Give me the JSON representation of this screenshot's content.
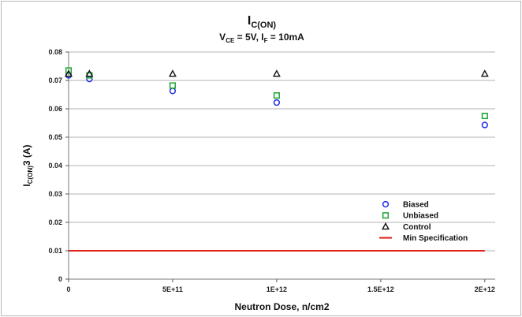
{
  "chart_data": {
    "type": "scatter",
    "title_main": "I",
    "title_main_sub": "C(ON)",
    "subtitle_parts": [
      {
        "t": "V",
        "sub": false
      },
      {
        "t": "CE",
        "sub": true
      },
      {
        "t": " = 5V, I",
        "sub": false
      },
      {
        "t": "F",
        "sub": true
      },
      {
        "t": " = 10mA",
        "sub": false
      }
    ],
    "xlabel": "Neutron Dose, n/cm2",
    "ylabel_parts": [
      {
        "t": "I",
        "sub": false
      },
      {
        "t": "C(ON)",
        "sub": true
      },
      {
        "t": "3 (A)",
        "sub": false
      }
    ],
    "xlim": [
      0,
      2050000000000.0
    ],
    "ylim": [
      0,
      0.08
    ],
    "xticks": [
      {
        "v": 0,
        "label": "0"
      },
      {
        "v": 500000000000.0,
        "label": "5E+11"
      },
      {
        "v": 1000000000000.0,
        "label": "1E+12"
      },
      {
        "v": 1500000000000.0,
        "label": "1.5E+12"
      },
      {
        "v": 2000000000000.0,
        "label": "2E+12"
      }
    ],
    "yticks": [
      {
        "v": 0,
        "label": "0"
      },
      {
        "v": 0.01,
        "label": "0.01"
      },
      {
        "v": 0.02,
        "label": "0.02"
      },
      {
        "v": 0.03,
        "label": "0.03"
      },
      {
        "v": 0.04,
        "label": "0.04"
      },
      {
        "v": 0.05,
        "label": "0.05"
      },
      {
        "v": 0.06,
        "label": "0.06"
      },
      {
        "v": 0.07,
        "label": "0.07"
      },
      {
        "v": 0.08,
        "label": "0.08"
      }
    ],
    "grid": {
      "horizontal": true,
      "vertical": false
    },
    "legend_position": "right-bottom",
    "series": [
      {
        "name": "Biased",
        "marker": "circle",
        "color": "#1f2ee6",
        "x": [
          0,
          100000000000.0,
          500000000000.0,
          1000000000000.0,
          2000000000000.0
        ],
        "y": [
          0.0718,
          0.0705,
          0.0663,
          0.0622,
          0.0543
        ]
      },
      {
        "name": "Unbiased",
        "marker": "square",
        "color": "#1aa532",
        "x": [
          0,
          100000000000.0,
          500000000000.0,
          1000000000000.0,
          2000000000000.0
        ],
        "y": [
          0.0735,
          0.0718,
          0.0682,
          0.0647,
          0.0575
        ]
      },
      {
        "name": "Control",
        "marker": "triangle",
        "color": "#111111",
        "x": [
          0,
          100000000000.0,
          500000000000.0,
          1000000000000.0,
          2000000000000.0
        ],
        "y": [
          0.0723,
          0.0723,
          0.0723,
          0.0723,
          0.0723
        ]
      },
      {
        "name": "Min Specification",
        "marker": "line",
        "color": "#e0201a",
        "x": [
          0,
          2000000000000.0
        ],
        "y": [
          0.01,
          0.01
        ]
      }
    ]
  }
}
